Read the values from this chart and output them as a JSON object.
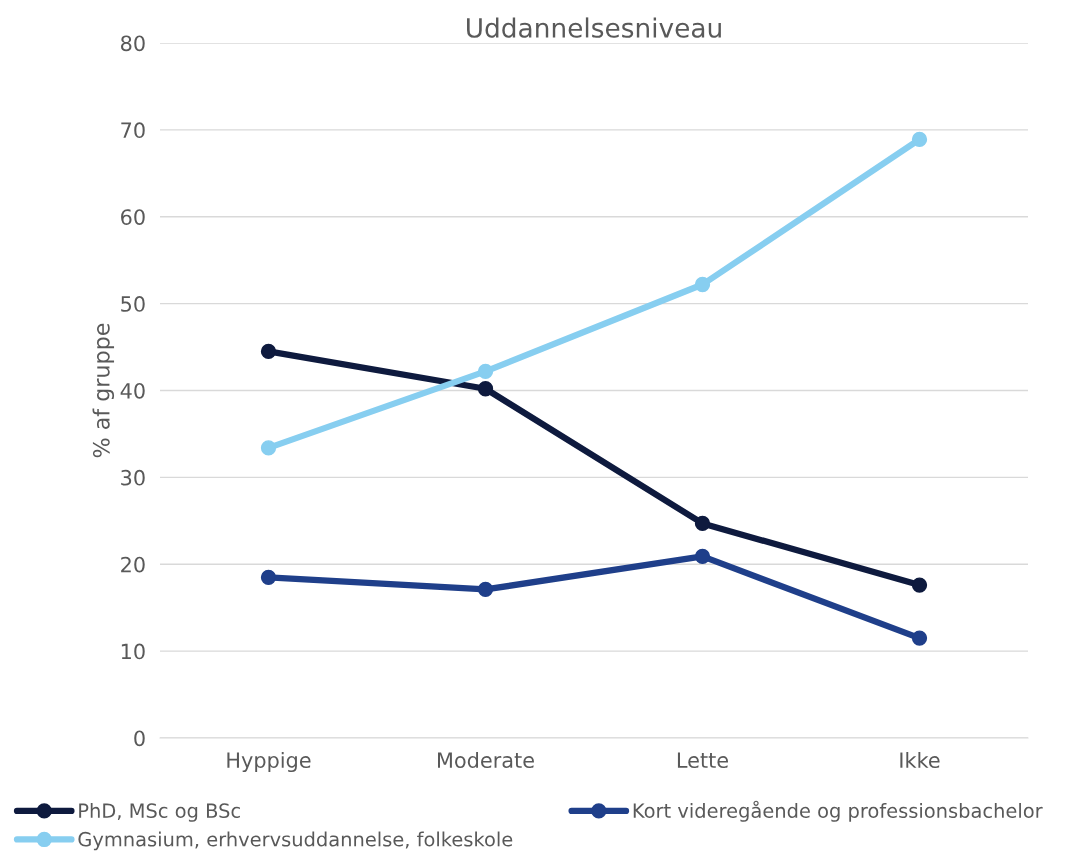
{
  "chart_data": {
    "type": "line",
    "title": "Uddannelsesniveau",
    "ylabel": "% af gruppe",
    "categories": [
      "Hyppige",
      "Moderate",
      "Lette",
      "Ikke"
    ],
    "series": [
      {
        "name": "PhD, MSc og BSc",
        "color": "#0e1a3e",
        "values": [
          44.5,
          40.2,
          24.7,
          17.6
        ]
      },
      {
        "name": "Kort videregående og professionsbachelor",
        "color": "#1f3f8a",
        "values": [
          18.5,
          17.1,
          20.9,
          11.5
        ]
      },
      {
        "name": "Gymnasium, erhvervsuddannelse, folkeskole",
        "color": "#87cef0",
        "values": [
          33.4,
          42.2,
          52.2,
          68.9
        ]
      }
    ],
    "ylim": [
      0,
      80
    ],
    "yticks": [
      0,
      10,
      20,
      30,
      40,
      50,
      60,
      70,
      80
    ],
    "grid": "y",
    "legend": "bottom",
    "marker": "circle",
    "line_style": "solid"
  }
}
